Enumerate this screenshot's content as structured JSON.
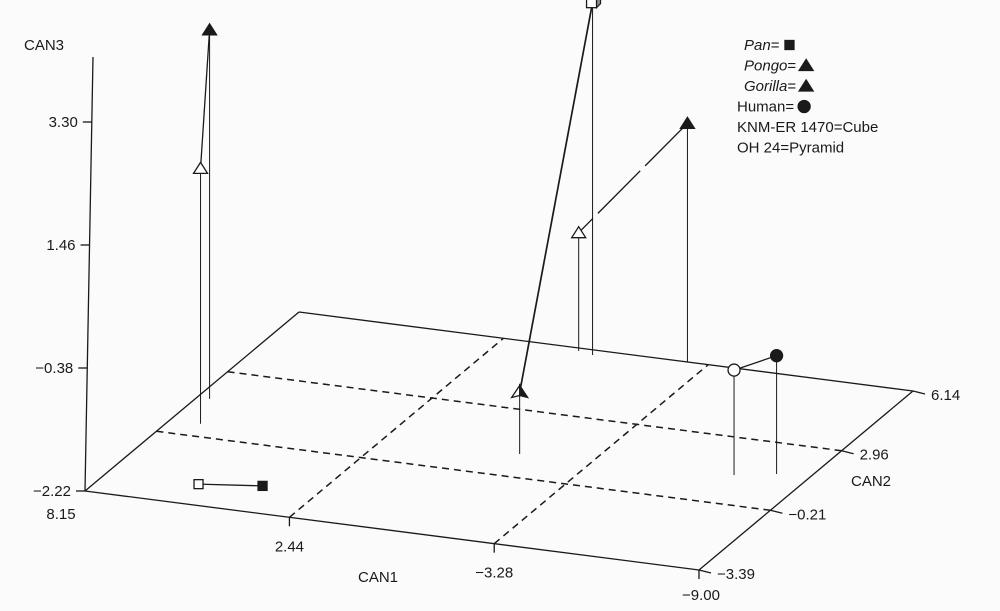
{
  "chart_data": {
    "type": "scatter",
    "projection": "3d",
    "axes": {
      "can1": {
        "label": "CAN1",
        "ticks": [
          "8.15",
          "2.44",
          "-3.28",
          "-9.00"
        ],
        "range": [
          8.15,
          -9.0
        ]
      },
      "can2": {
        "label": "CAN2",
        "ticks": [
          "-3.39",
          "-0.21",
          "2.96",
          "6.14"
        ],
        "range": [
          -3.39,
          6.14
        ]
      },
      "can3": {
        "label": "CAN3",
        "ticks": [
          "-2.22",
          "-0.38",
          "1.46",
          "3.30"
        ],
        "range": [
          -2.22,
          3.3
        ]
      }
    },
    "tick_display": {
      "can1": [
        "8.15",
        "2.44",
        "−3.28",
        "−9.00"
      ],
      "can2": [
        "−3.39",
        "−0.21",
        "2.96",
        "6.14"
      ],
      "can3": [
        "−2.22",
        "−0.38",
        "1.46",
        "3.30"
      ]
    },
    "legend": [
      {
        "label": "Pan",
        "italic": true,
        "suffix": "=",
        "marker": "square"
      },
      {
        "label": "Pongo",
        "italic": true,
        "suffix": "=",
        "marker": "triangle"
      },
      {
        "label": "Gorilla",
        "italic": true,
        "suffix": "=",
        "marker": "triangle"
      },
      {
        "label": "Human",
        "italic": false,
        "suffix": "=",
        "marker": "circle"
      },
      {
        "label": "KNM-ER 1470",
        "italic": false,
        "suffix": "=Cube",
        "marker": ""
      },
      {
        "label": "OH 24",
        "italic": false,
        "suffix": "=Pyramid",
        "marker": ""
      }
    ],
    "series": [
      {
        "name": "Pan",
        "marker": "square",
        "filled": {
          "can1": 4.0,
          "can2": -2.1,
          "can3": -2.22
        },
        "open": {
          "can1": 5.6,
          "can2": -2.4,
          "can3": -2.22
        }
      },
      {
        "name": "Pongo",
        "marker": "triangle",
        "filled": {
          "can1": 7.8,
          "can2": 1.6,
          "can3": 3.3
        },
        "open": {
          "can1": 7.3,
          "can2": 0.4,
          "can3": 1.6
        }
      },
      {
        "name": "Gorilla",
        "marker": "triangle",
        "filled": {
          "can1": -2.7,
          "can2": 6.14,
          "can3": 1.35
        },
        "open": {
          "can1": 0.25,
          "can2": 6.0,
          "can3": -0.45
        }
      },
      {
        "name": "Human",
        "marker": "circle",
        "filled": {
          "can1": -8.1,
          "can2": 1.5,
          "can3": -0.45
        },
        "open": {
          "can1": -7.1,
          "can2": 1.2,
          "can3": -0.65
        }
      },
      {
        "name": "KNM-ER 1470",
        "marker": "cube",
        "point": {
          "can1": -0.2,
          "can2": 5.9,
          "can3": 3.05
        }
      },
      {
        "name": "OH 24",
        "marker": "pyramid",
        "point": {
          "can1": -1.3,
          "can2": 0.9,
          "can3": -1.3
        }
      }
    ],
    "colors": {
      "ink": "#1a1a1a",
      "background": "#fbfbfb"
    }
  }
}
